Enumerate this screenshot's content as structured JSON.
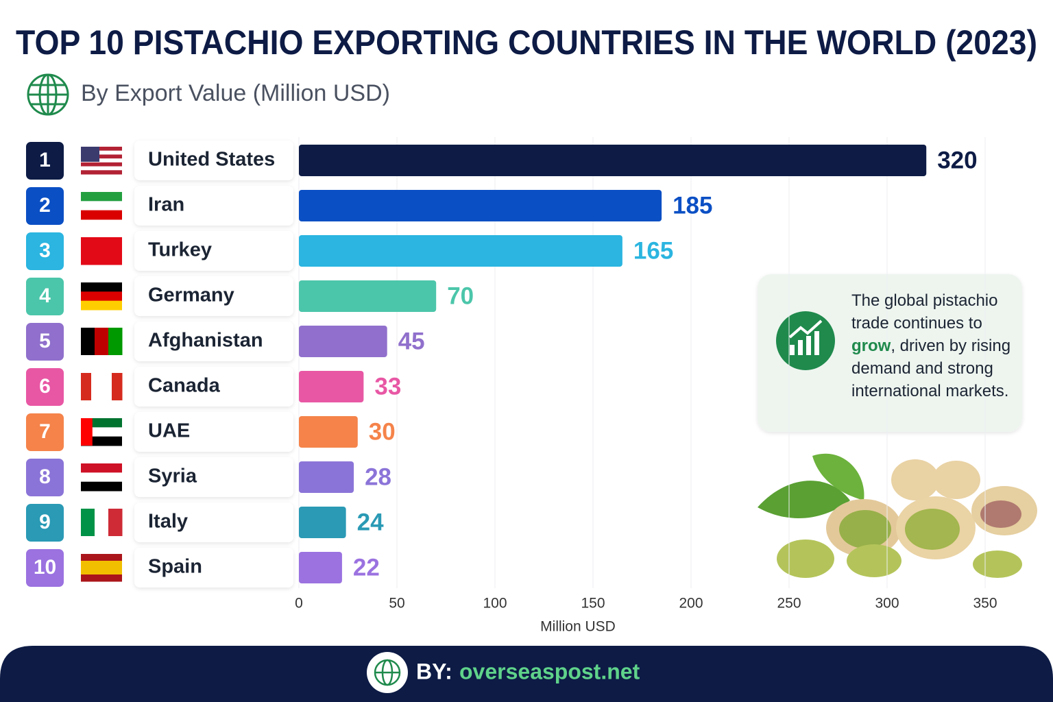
{
  "chart_data": {
    "type": "hbar",
    "title": "TOP 10 PISTACHIO EXPORTING COUNTRIES IN THE WORLD (2023)",
    "subtitle": "By Export Value (Million USD)",
    "ranks": [
      1,
      2,
      3,
      4,
      5,
      6,
      7,
      8,
      9,
      10
    ],
    "categories": [
      "United States",
      "Iran",
      "Turkey",
      "Germany",
      "Afghanistan",
      "Canada",
      "UAE",
      "Syria",
      "Italy",
      "Spain"
    ],
    "values": [
      320,
      185,
      165,
      70,
      45,
      33,
      30,
      28,
      24,
      22
    ],
    "colors": [
      "#0d1b45",
      "#0b4fc4",
      "#2bb5e0",
      "#4cc6aa",
      "#9070cc",
      "#e857a4",
      "#f5834a",
      "#8b74d8",
      "#2a9ab5",
      "#9b72e0"
    ],
    "xlim": [
      0,
      350
    ],
    "xticks": [
      0,
      50,
      100,
      150,
      200,
      250,
      300,
      350
    ],
    "xlabel": "Million USD",
    "grid": true,
    "callout": {
      "before": "The global pistachio trade continues to",
      "highlight": "grow",
      "after": ", driven by rising demand and strong international markets."
    },
    "footer": {
      "prefix": "BY:",
      "site": "overseaspost.net"
    }
  }
}
